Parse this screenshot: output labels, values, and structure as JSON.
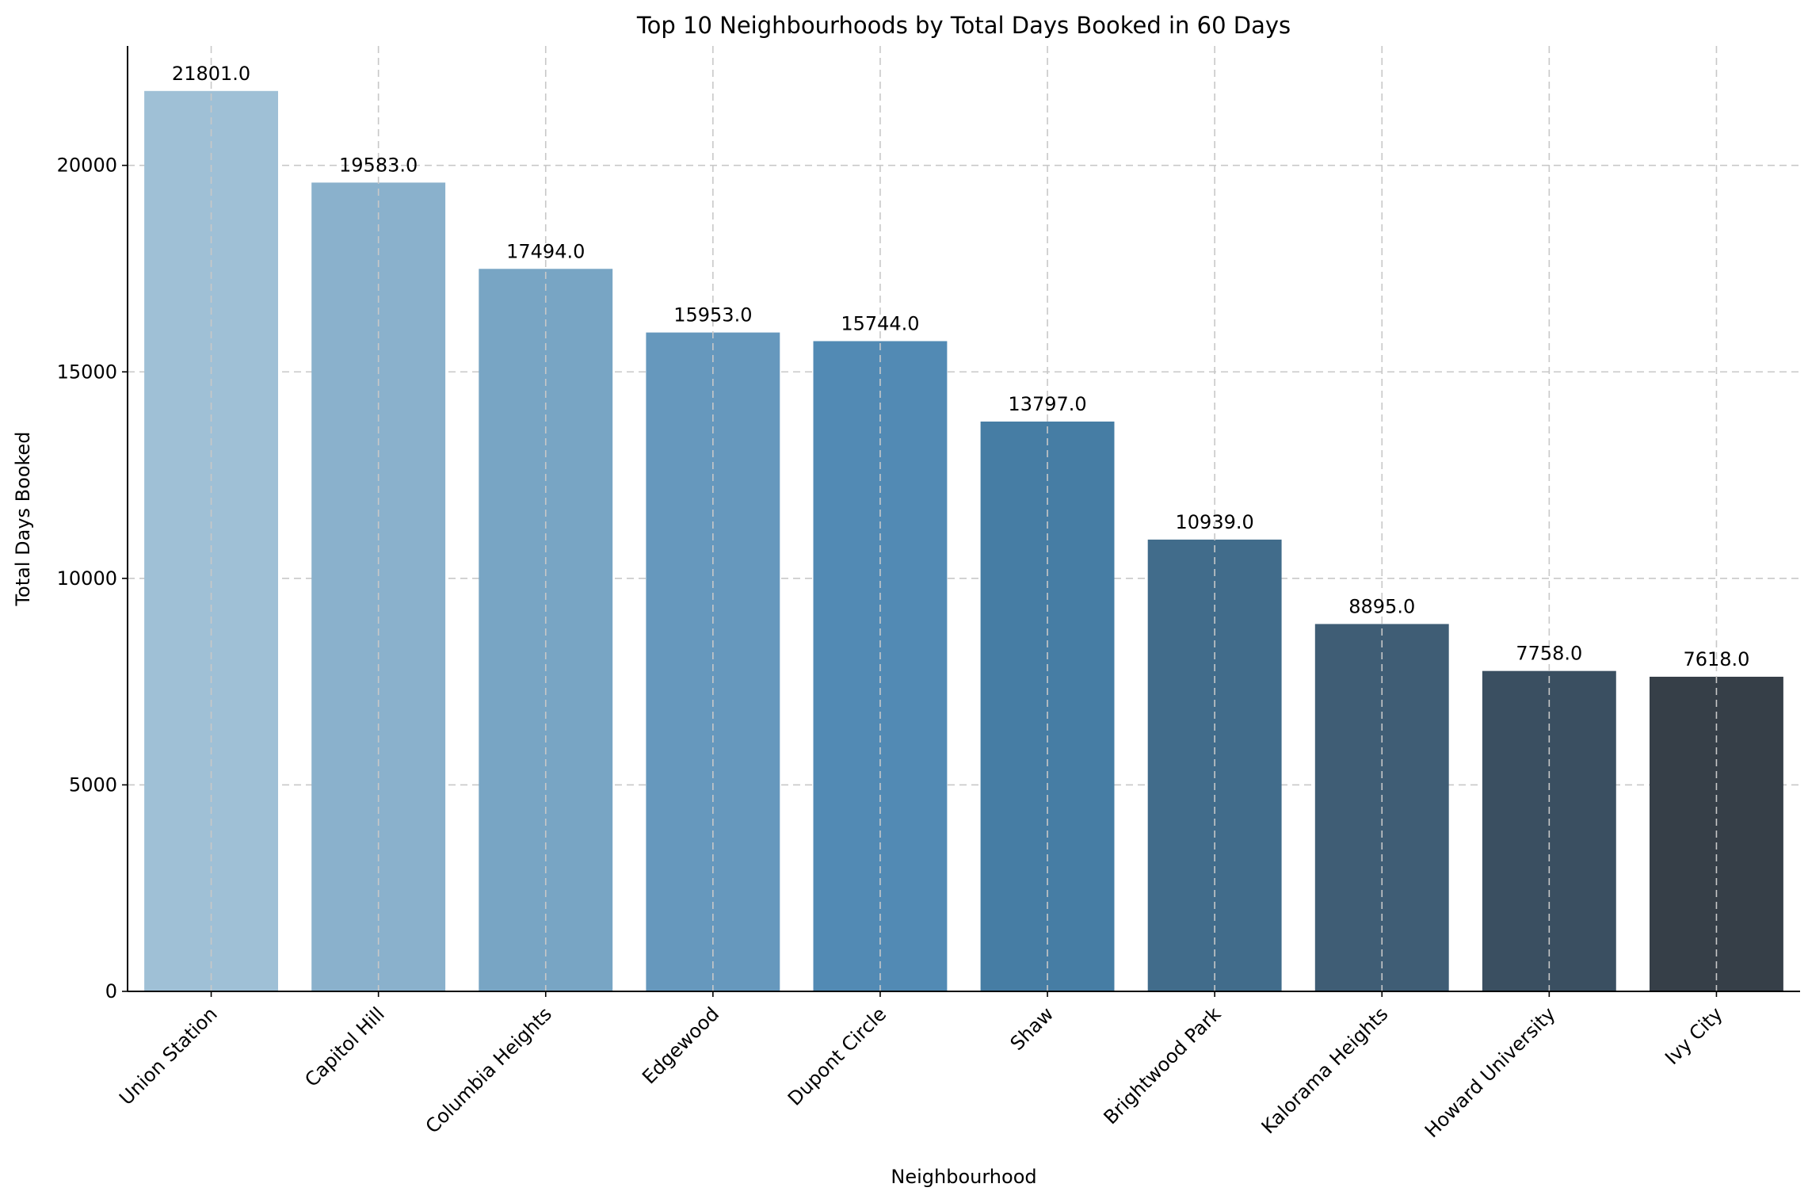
{
  "chart_data": {
    "type": "bar",
    "title": "Top 10 Neighbourhoods by Total Days Booked in 60 Days",
    "xlabel": "Neighbourhood",
    "ylabel": "Total Days Booked",
    "categories": [
      "Union Station",
      "Capitol Hill",
      "Columbia Heights",
      "Edgewood",
      "Dupont Circle",
      "Shaw",
      "Brightwood Park",
      "Kalorama Heights",
      "Howard University",
      "Ivy City"
    ],
    "values": [
      21801,
      19583,
      17494,
      15953,
      15744,
      13797,
      10939,
      8895,
      7758,
      7618
    ],
    "value_labels": [
      "21801.0",
      "19583.0",
      "17494.0",
      "15953.0",
      "15744.0",
      "13797.0",
      "10939.0",
      "8895.0",
      "7758.0",
      "7618.0"
    ],
    "colors": [
      "#9fc0d6",
      "#8ab1cc",
      "#78a5c4",
      "#6698bd",
      "#528ab4",
      "#467da4",
      "#416c8b",
      "#3f5d75",
      "#3a4f61",
      "#363f48"
    ],
    "yticks": [
      0,
      5000,
      10000,
      15000,
      20000
    ],
    "ylim": [
      0,
      22891
    ],
    "grid": true
  }
}
